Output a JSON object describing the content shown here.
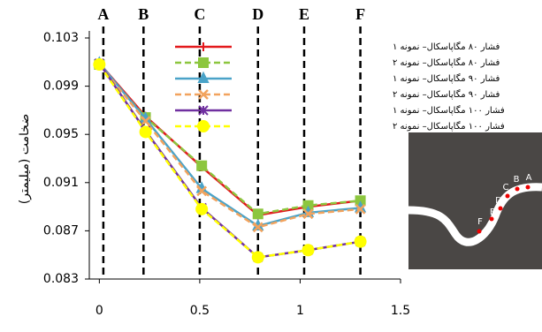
{
  "chart_data": {
    "type": "line",
    "y_label": "ضخامت (میلیمتر)",
    "x": [
      0,
      0.23,
      0.51,
      0.79,
      1.04,
      1.3
    ],
    "xlim": [
      -0.05,
      1.5
    ],
    "xticks": [
      0,
      0.5,
      1,
      1.5
    ],
    "ylim": [
      0.083,
      0.103
    ],
    "yticks": [
      0.083,
      0.087,
      0.091,
      0.095,
      0.099,
      0.103
    ],
    "sections": [
      {
        "label": "A",
        "x": 0.02
      },
      {
        "label": "B",
        "x": 0.22
      },
      {
        "label": "C",
        "x": 0.5
      },
      {
        "label": "D",
        "x": 0.79
      },
      {
        "label": "E",
        "x": 1.02
      },
      {
        "label": "F",
        "x": 1.3
      }
    ],
    "series": [
      {
        "name": "فشار ۸۰ مگاپاسکال– نمونه ۱",
        "color": "#e3191c",
        "dash": false,
        "marker": "plus",
        "values": [
          0.1009,
          0.0965,
          0.0923,
          0.0883,
          0.089,
          0.0895
        ]
      },
      {
        "name": "فشار ۸۰ مگاپاسکال– نمونه ۲",
        "color": "#8cc63e",
        "dash": true,
        "marker": "square",
        "values": [
          0.1008,
          0.0964,
          0.0924,
          0.0884,
          0.0891,
          0.0895
        ]
      },
      {
        "name": "فشار ۹۰ مگاپاسکال– نمونه ۱",
        "color": "#4aa3c8",
        "dash": false,
        "marker": "triangle",
        "values": [
          0.1009,
          0.0963,
          0.0905,
          0.0874,
          0.0885,
          0.0889
        ]
      },
      {
        "name": "فشار ۹۰ مگاپاسکال– نمونه ۲",
        "color": "#f2a35e",
        "dash": true,
        "marker": "x",
        "values": [
          0.1008,
          0.0961,
          0.0903,
          0.0873,
          0.0884,
          0.0888
        ]
      },
      {
        "name": "فشار ۱۰۰ مگاپاسکال– نمونه ۱",
        "color": "#7030a0",
        "dash": false,
        "marker": "star",
        "values": [
          0.1009,
          0.0953,
          0.0889,
          0.0848,
          0.0854,
          0.0861
        ]
      },
      {
        "name": "فشار ۱۰۰ مگاپاسکال– نمونه ۲",
        "color": "#ffff00",
        "dash": true,
        "marker": "circle",
        "values": [
          0.1008,
          0.0952,
          0.0888,
          0.0848,
          0.0854,
          0.0861
        ]
      }
    ]
  }
}
